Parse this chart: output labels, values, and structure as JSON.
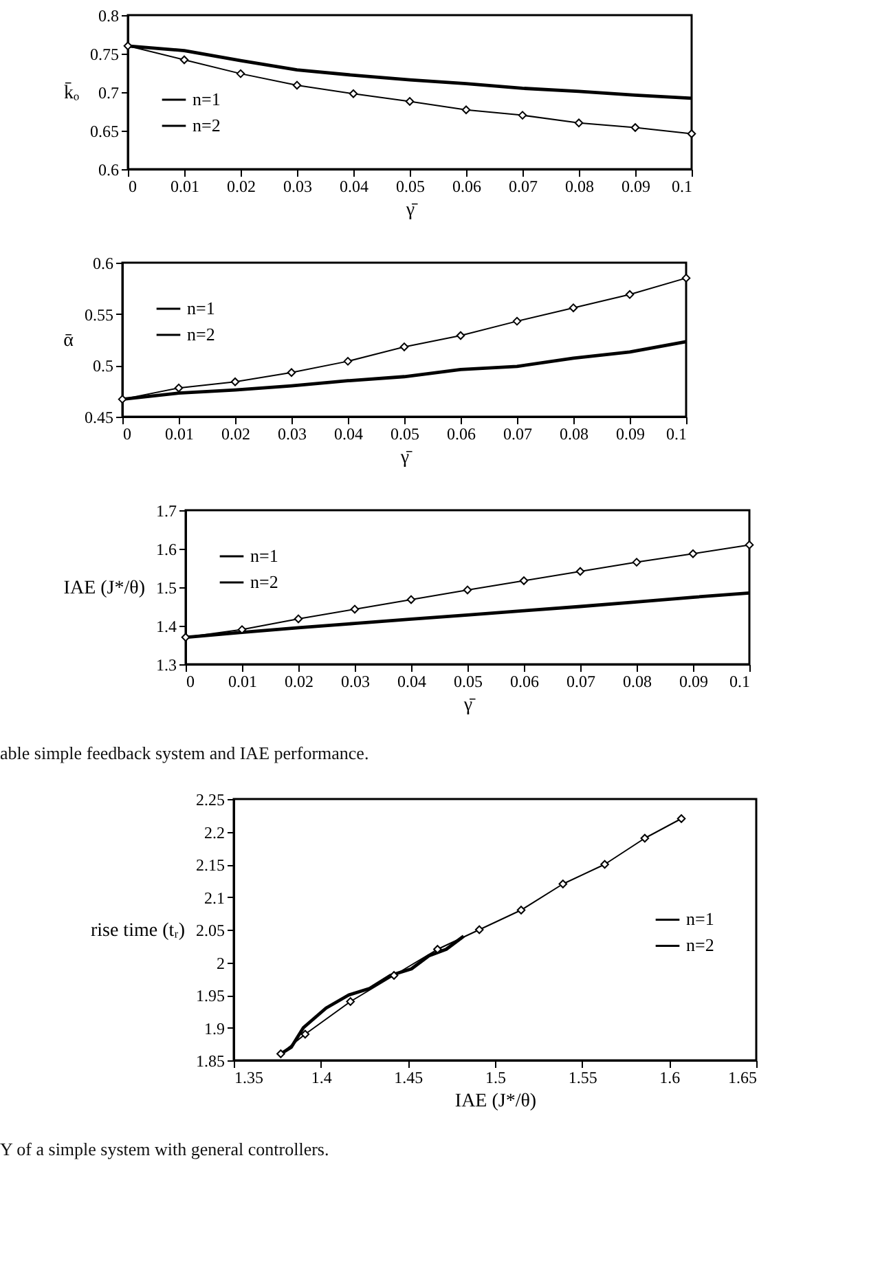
{
  "chart_data": [
    {
      "type": "line",
      "xlabel": "γ̄",
      "ylabel": "k̄ₒ",
      "x": [
        0,
        0.01,
        0.02,
        0.03,
        0.04,
        0.05,
        0.06,
        0.07,
        0.08,
        0.09,
        0.1
      ],
      "xlim": [
        0,
        0.1
      ],
      "xticks": [
        0,
        0.01,
        0.02,
        0.03,
        0.04,
        0.05,
        0.06,
        0.07,
        0.08,
        0.09,
        0.1
      ],
      "ylim": [
        0.6,
        0.8
      ],
      "yticks": [
        0.6,
        0.65,
        0.7,
        0.75,
        0.8
      ],
      "legend": "bottom left",
      "series": [
        {
          "name": "n=1",
          "color": "#000000",
          "marker": "none",
          "values": [
            0.76,
            0.754,
            0.741,
            0.729,
            0.722,
            0.716,
            0.711,
            0.705,
            0.701,
            0.696,
            0.692
          ]
        },
        {
          "name": "n=2",
          "color": "#000000",
          "marker": "diamond",
          "values": [
            0.76,
            0.742,
            0.724,
            0.709,
            0.698,
            0.688,
            0.677,
            0.67,
            0.66,
            0.654,
            0.646
          ]
        }
      ]
    },
    {
      "type": "line",
      "xlabel": "γ̄",
      "ylabel": "ᾱ",
      "x": [
        0,
        0.01,
        0.02,
        0.03,
        0.04,
        0.05,
        0.06,
        0.07,
        0.08,
        0.09,
        0.1
      ],
      "xlim": [
        0,
        0.1
      ],
      "xticks": [
        0,
        0.01,
        0.02,
        0.03,
        0.04,
        0.05,
        0.06,
        0.07,
        0.08,
        0.09,
        0.1
      ],
      "ylim": [
        0.45,
        0.6
      ],
      "yticks": [
        0.45,
        0.5,
        0.55,
        0.6
      ],
      "legend": "top left",
      "series": [
        {
          "name": "n=1",
          "color": "#000000",
          "marker": "none",
          "values": [
            0.467,
            0.473,
            0.476,
            0.48,
            0.485,
            0.489,
            0.496,
            0.499,
            0.507,
            0.513,
            0.523
          ]
        },
        {
          "name": "n=2",
          "color": "#000000",
          "marker": "diamond",
          "values": [
            0.467,
            0.478,
            0.484,
            0.493,
            0.504,
            0.518,
            0.529,
            0.543,
            0.556,
            0.569,
            0.585
          ]
        }
      ]
    },
    {
      "type": "line",
      "xlabel": "γ̄",
      "ylabel": "IAE (J*/θ)",
      "x": [
        0,
        0.01,
        0.02,
        0.03,
        0.04,
        0.05,
        0.06,
        0.07,
        0.08,
        0.09,
        0.1
      ],
      "xlim": [
        0,
        0.1
      ],
      "xticks": [
        0,
        0.01,
        0.02,
        0.03,
        0.04,
        0.05,
        0.06,
        0.07,
        0.08,
        0.09,
        0.1
      ],
      "ylim": [
        1.3,
        1.7
      ],
      "yticks": [
        1.3,
        1.4,
        1.5,
        1.6,
        1.7
      ],
      "legend": "top left",
      "annotations": [
        "able simple feedback system and IAE performance."
      ],
      "series": [
        {
          "name": "n=1",
          "color": "#000000",
          "marker": "none",
          "values": [
            1.37,
            1.383,
            1.395,
            1.406,
            1.417,
            1.428,
            1.439,
            1.45,
            1.462,
            1.474,
            1.485
          ]
        },
        {
          "name": "n=2",
          "color": "#000000",
          "marker": "diamond",
          "values": [
            1.37,
            1.39,
            1.418,
            1.443,
            1.468,
            1.493,
            1.517,
            1.541,
            1.565,
            1.587,
            1.61
          ]
        }
      ]
    },
    {
      "type": "line",
      "xlabel": "IAE (J*/θ)",
      "ylabel": "rise time (tᵣ)",
      "xlim": [
        1.35,
        1.65
      ],
      "xticks": [
        1.35,
        1.4,
        1.45,
        1.5,
        1.55,
        1.6,
        1.65
      ],
      "ylim": [
        1.85,
        2.25
      ],
      "yticks": [
        1.85,
        1.9,
        1.95,
        2,
        2.05,
        2.1,
        2.15,
        2.2,
        2.25
      ],
      "legend": "right",
      "annotations": [
        "Y of a simple system with general controllers."
      ],
      "series": [
        {
          "name": "n=1",
          "color": "#000000",
          "marker": "none",
          "x": [
            1.377,
            1.383,
            1.39,
            1.403,
            1.416,
            1.428,
            1.44,
            1.452,
            1.462,
            1.472,
            1.482
          ],
          "values": [
            1.86,
            1.87,
            1.9,
            1.93,
            1.95,
            1.96,
            1.98,
            1.99,
            2.01,
            2.02,
            2.04
          ]
        },
        {
          "name": "n=2",
          "color": "#000000",
          "marker": "diamond",
          "x": [
            1.377,
            1.391,
            1.417,
            1.442,
            1.467,
            1.491,
            1.515,
            1.539,
            1.563,
            1.586,
            1.607
          ],
          "values": [
            1.86,
            1.89,
            1.94,
            1.98,
            2.02,
            2.05,
            2.08,
            2.12,
            2.15,
            2.19,
            2.22
          ]
        }
      ]
    }
  ]
}
